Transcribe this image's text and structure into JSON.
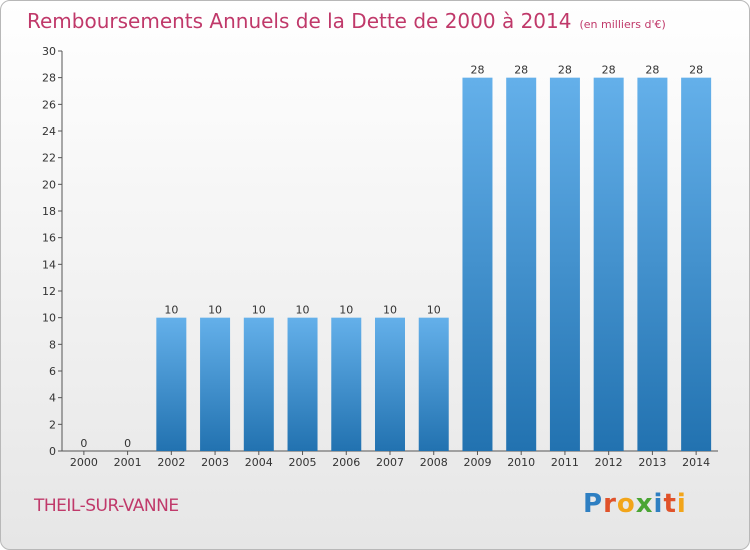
{
  "title": "Remboursements Annuels de la Dette de 2000 à 2014",
  "subtitle": "(en milliers d'€)",
  "location": "THEIL-SUR-VANNE",
  "logo": {
    "letters": [
      "P",
      "r",
      "o",
      "x",
      "i",
      "t",
      "i"
    ],
    "colors": [
      "#2e7fc2",
      "#e0522a",
      "#f2a51a",
      "#4aa534",
      "#2e7fc2",
      "#e0522a",
      "#f2a51a"
    ]
  },
  "colors": {
    "bar_light": "#64b0ea",
    "bar_dark": "#2272b0",
    "title": "#c0396a"
  },
  "chart_data": {
    "type": "bar",
    "categories": [
      "2000",
      "2001",
      "2002",
      "2003",
      "2004",
      "2005",
      "2006",
      "2007",
      "2008",
      "2009",
      "2010",
      "2011",
      "2012",
      "2013",
      "2014"
    ],
    "values": [
      0,
      0,
      10,
      10,
      10,
      10,
      10,
      10,
      10,
      28,
      28,
      28,
      28,
      28,
      28
    ],
    "data_labels": [
      "0",
      "0",
      "10",
      "10",
      "10",
      "10",
      "10",
      "10",
      "10",
      "28",
      "28",
      "28",
      "28",
      "28",
      "28"
    ],
    "ylim": [
      0,
      30
    ],
    "yticks": [
      0,
      2,
      4,
      6,
      8,
      10,
      12,
      14,
      16,
      18,
      20,
      22,
      24,
      26,
      28,
      30
    ],
    "title": "Remboursements Annuels de la Dette de 2000 à 2014",
    "xlabel": "",
    "ylabel": "",
    "grid": false,
    "legend": "none"
  }
}
